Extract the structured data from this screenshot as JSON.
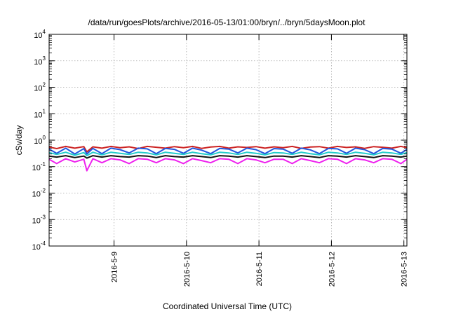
{
  "chart_data": {
    "type": "line",
    "title": "/data/run/goesPlots/archive/2016-05-13/01:00/bryn/../bryn/5daysMoon.plot",
    "xlabel": "Coordinated Universal Time (UTC)",
    "ylabel": "cSv/day",
    "yscale": "log",
    "ylim": [
      0.0001,
      10000
    ],
    "xlim": [
      "2016-05-08 02:30",
      "2016-05-13 01:00"
    ],
    "grid": true,
    "x_ticks": [
      {
        "value": "2016-05-09 00:00",
        "label": "2016-5-9"
      },
      {
        "value": "2016-05-10 00:00",
        "label": "2016-5-10"
      },
      {
        "value": "2016-05-11 00:00",
        "label": "2016-5-11"
      },
      {
        "value": "2016-05-12 00:00",
        "label": "2016-5-12"
      },
      {
        "value": "2016-05-13 00:00",
        "label": "2016-5-13"
      }
    ],
    "y_ticks": [
      {
        "value": 0.0001,
        "base": "10",
        "exp": "-4"
      },
      {
        "value": 0.001,
        "base": "10",
        "exp": "-3"
      },
      {
        "value": 0.01,
        "base": "10",
        "exp": "-2"
      },
      {
        "value": 0.1,
        "base": "10",
        "exp": "-1"
      },
      {
        "value": 1,
        "base": "10",
        "exp": "0"
      },
      {
        "value": 10,
        "base": "10",
        "exp": "1"
      },
      {
        "value": 100,
        "base": "10",
        "exp": "2"
      },
      {
        "value": 1000,
        "base": "10",
        "exp": "3"
      },
      {
        "value": 10000,
        "base": "10",
        "exp": "4"
      }
    ],
    "x": [
      "2016-05-08 02:30",
      "2016-05-08 05:00",
      "2016-05-08 08:00",
      "2016-05-08 11:00",
      "2016-05-08 14:00",
      "2016-05-08 15:00",
      "2016-05-08 17:00",
      "2016-05-08 20:00",
      "2016-05-08 23:00",
      "2016-05-09 02:00",
      "2016-05-09 05:00",
      "2016-05-09 08:00",
      "2016-05-09 11:00",
      "2016-05-09 14:00",
      "2016-05-09 17:00",
      "2016-05-09 20:00",
      "2016-05-09 23:00",
      "2016-05-10 02:00",
      "2016-05-10 05:00",
      "2016-05-10 08:00",
      "2016-05-10 11:00",
      "2016-05-10 14:00",
      "2016-05-10 17:00",
      "2016-05-10 20:00",
      "2016-05-10 23:00",
      "2016-05-11 02:00",
      "2016-05-11 05:00",
      "2016-05-11 08:00",
      "2016-05-11 11:00",
      "2016-05-11 14:00",
      "2016-05-11 17:00",
      "2016-05-11 20:00",
      "2016-05-11 23:00",
      "2016-05-12 02:00",
      "2016-05-12 05:00",
      "2016-05-12 08:00",
      "2016-05-12 11:00",
      "2016-05-12 14:00",
      "2016-05-12 17:00",
      "2016-05-12 20:00",
      "2016-05-12 23:00",
      "2016-05-13 01:00"
    ],
    "series": [
      {
        "color": "#cc2222",
        "values": [
          0.55,
          0.48,
          0.58,
          0.5,
          0.57,
          0.36,
          0.56,
          0.5,
          0.58,
          0.52,
          0.56,
          0.48,
          0.58,
          0.54,
          0.5,
          0.57,
          0.52,
          0.58,
          0.49,
          0.55,
          0.58,
          0.5,
          0.56,
          0.53,
          0.57,
          0.5,
          0.56,
          0.52,
          0.58,
          0.49,
          0.55,
          0.57,
          0.5,
          0.58,
          0.53,
          0.56,
          0.49,
          0.57,
          0.54,
          0.5,
          0.58,
          0.52
        ]
      },
      {
        "color": "#2255dd",
        "values": [
          0.46,
          0.32,
          0.5,
          0.3,
          0.48,
          0.3,
          0.49,
          0.31,
          0.5,
          0.44,
          0.33,
          0.5,
          0.47,
          0.31,
          0.49,
          0.45,
          0.32,
          0.5,
          0.42,
          0.31,
          0.49,
          0.46,
          0.33,
          0.5,
          0.44,
          0.31,
          0.48,
          0.46,
          0.32,
          0.5,
          0.43,
          0.31,
          0.49,
          0.47,
          0.32,
          0.5,
          0.44,
          0.31,
          0.49,
          0.46,
          0.32,
          0.45
        ]
      },
      {
        "color": "#22cccc",
        "values": [
          0.34,
          0.29,
          0.35,
          0.27,
          0.34,
          0.26,
          0.35,
          0.28,
          0.35,
          0.32,
          0.29,
          0.35,
          0.33,
          0.28,
          0.35,
          0.32,
          0.29,
          0.35,
          0.31,
          0.28,
          0.35,
          0.33,
          0.29,
          0.35,
          0.32,
          0.28,
          0.34,
          0.33,
          0.29,
          0.35,
          0.31,
          0.28,
          0.35,
          0.33,
          0.29,
          0.35,
          0.32,
          0.28,
          0.35,
          0.33,
          0.29,
          0.34
        ]
      },
      {
        "color": "#111111",
        "values": [
          0.25,
          0.23,
          0.26,
          0.22,
          0.25,
          0.21,
          0.26,
          0.23,
          0.26,
          0.24,
          0.23,
          0.26,
          0.25,
          0.22,
          0.26,
          0.24,
          0.23,
          0.26,
          0.24,
          0.22,
          0.26,
          0.25,
          0.23,
          0.26,
          0.24,
          0.22,
          0.25,
          0.25,
          0.23,
          0.26,
          0.24,
          0.22,
          0.26,
          0.25,
          0.23,
          0.26,
          0.24,
          0.22,
          0.26,
          0.25,
          0.23,
          0.25
        ]
      },
      {
        "color": "#ee22ee",
        "values": [
          0.19,
          0.13,
          0.2,
          0.15,
          0.19,
          0.07,
          0.2,
          0.14,
          0.2,
          0.18,
          0.13,
          0.2,
          0.19,
          0.14,
          0.2,
          0.18,
          0.13,
          0.2,
          0.17,
          0.14,
          0.2,
          0.19,
          0.13,
          0.2,
          0.18,
          0.14,
          0.19,
          0.19,
          0.13,
          0.2,
          0.17,
          0.14,
          0.2,
          0.19,
          0.13,
          0.2,
          0.18,
          0.14,
          0.2,
          0.19,
          0.13,
          0.19
        ]
      }
    ]
  }
}
